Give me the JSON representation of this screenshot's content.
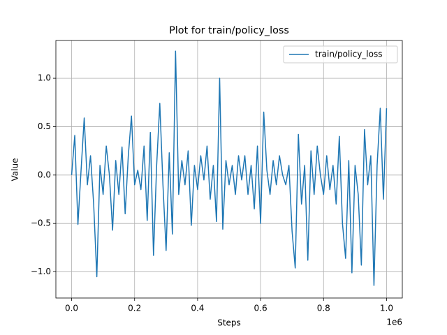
{
  "chart_data": {
    "type": "line",
    "title": "Plot for train/policy_loss",
    "x_label": "Steps",
    "y_label": "Value",
    "x_offset_label": "1e6",
    "x": [
      0,
      10000,
      20000,
      30000,
      40000,
      50000,
      60000,
      70000,
      80000,
      90000,
      100000,
      110000,
      120000,
      130000,
      140000,
      150000,
      160000,
      170000,
      180000,
      190000,
      200000,
      210000,
      220000,
      230000,
      240000,
      250000,
      260000,
      270000,
      280000,
      290000,
      300000,
      310000,
      320000,
      330000,
      340000,
      350000,
      360000,
      370000,
      380000,
      390000,
      400000,
      410000,
      420000,
      430000,
      440000,
      450000,
      460000,
      470000,
      480000,
      490000,
      500000,
      510000,
      520000,
      530000,
      540000,
      550000,
      560000,
      570000,
      580000,
      590000,
      600000,
      610000,
      620000,
      630000,
      640000,
      650000,
      660000,
      670000,
      680000,
      690000,
      700000,
      710000,
      720000,
      730000,
      740000,
      750000,
      760000,
      770000,
      780000,
      790000,
      800000,
      810000,
      820000,
      830000,
      840000,
      850000,
      860000,
      870000,
      880000,
      890000,
      900000,
      910000,
      920000,
      930000,
      940000,
      950000,
      960000,
      970000,
      980000,
      990000,
      1000000
    ],
    "series": [
      {
        "name": "train/policy_loss",
        "color": "#1f77b4",
        "values": [
          0.0,
          0.41,
          -0.51,
          0.05,
          0.59,
          -0.1,
          0.2,
          -0.3,
          -1.05,
          0.1,
          -0.2,
          0.3,
          0.0,
          -0.57,
          0.15,
          -0.2,
          0.29,
          -0.4,
          0.2,
          0.61,
          -0.1,
          0.05,
          -0.15,
          0.3,
          -0.47,
          0.44,
          -0.83,
          0.1,
          0.74,
          -0.1,
          -0.78,
          0.23,
          -0.61,
          1.28,
          -0.2,
          0.15,
          -0.1,
          0.25,
          -0.52,
          0.1,
          -0.15,
          0.2,
          -0.05,
          0.3,
          -0.25,
          0.1,
          -0.48,
          1.0,
          -0.56,
          0.15,
          -0.1,
          0.1,
          -0.2,
          0.2,
          -0.05,
          0.2,
          -0.2,
          0.1,
          -0.35,
          0.3,
          -0.5,
          0.65,
          0.05,
          -0.2,
          0.15,
          -0.1,
          0.2,
          0.0,
          -0.1,
          0.1,
          -0.58,
          -0.96,
          0.42,
          -0.3,
          0.1,
          -0.88,
          0.25,
          -0.2,
          0.3,
          0.0,
          -0.2,
          0.2,
          -0.15,
          0.1,
          -0.3,
          0.4,
          -0.5,
          -0.86,
          0.15,
          -1.01,
          0.1,
          -0.2,
          -0.93,
          0.47,
          -0.1,
          0.2,
          -1.14,
          0.1,
          0.69,
          -0.25,
          0.69
        ]
      }
    ],
    "xlim": [
      -50000,
      1050000
    ],
    "xticks": [
      {
        "value": 0,
        "label": "0.0"
      },
      {
        "value": 200000,
        "label": "0.2"
      },
      {
        "value": 400000,
        "label": "0.4"
      },
      {
        "value": 600000,
        "label": "0.6"
      },
      {
        "value": 800000,
        "label": "0.8"
      },
      {
        "value": 1000000,
        "label": "1.0"
      }
    ],
    "ylim": [
      -1.27,
      1.39
    ],
    "yticks": [
      {
        "value": -1.0,
        "label": "−1.0"
      },
      {
        "value": -0.5,
        "label": "−0.5"
      },
      {
        "value": 0.0,
        "label": "0.0"
      },
      {
        "value": 0.5,
        "label": "0.5"
      },
      {
        "value": 1.0,
        "label": "1.0"
      }
    ],
    "grid": true,
    "legend": "upper-right"
  }
}
